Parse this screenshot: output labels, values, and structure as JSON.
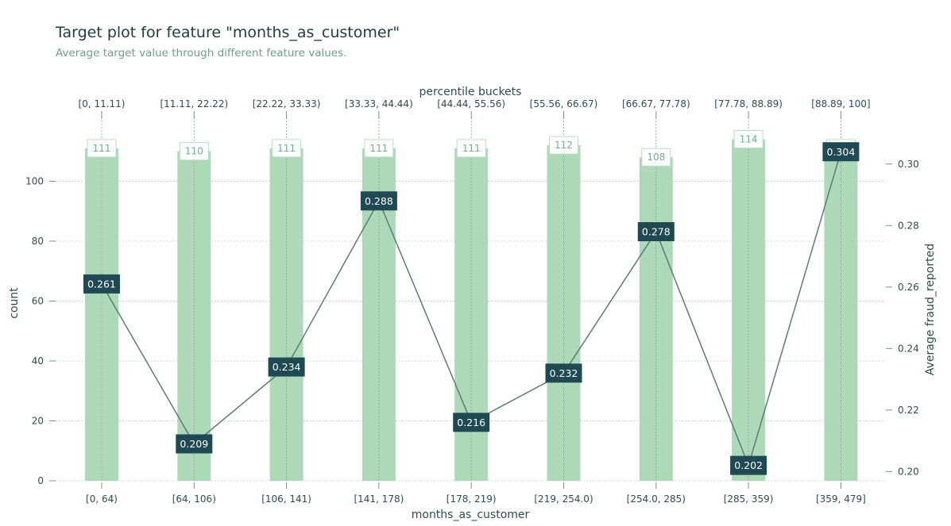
{
  "chart_data": {
    "type": "bar",
    "title": "Target plot for feature \"months_as_customer\"",
    "subtitle": "Average target value through different feature values.",
    "xlabel": "months_as_customer",
    "ylabel": "count",
    "y2label": "Average fraud_reported",
    "top_axis_label": "percentile buckets",
    "categories": [
      "[0, 64)",
      "[64, 106)",
      "[106, 141)",
      "[141, 178)",
      "[178, 219)",
      "[219, 254.0)",
      "[254.0, 285)",
      "[285, 359)",
      "[359, 479]"
    ],
    "percentile_buckets": [
      "[0, 11.11)",
      "[11.11, 22.22)",
      "[22.22, 33.33)",
      "[33.33, 44.44)",
      "[44.44, 55.56)",
      "[55.56, 66.67)",
      "[66.67, 77.78)",
      "[77.78, 88.89)",
      "[88.89, 100]"
    ],
    "series": [
      {
        "values": [
          111,
          110,
          111,
          111,
          111,
          112,
          108,
          114,
          111
        ],
        "axis": "left",
        "kind": "bar",
        "labels": [
          "111",
          "110",
          "111",
          "111",
          "111",
          "112",
          "108",
          "114",
          "111"
        ]
      },
      {
        "values": [
          0.261,
          0.209,
          0.234,
          0.288,
          0.216,
          0.232,
          0.278,
          0.202,
          0.304
        ],
        "axis": "right",
        "kind": "line",
        "labels": [
          "0.261",
          "0.209",
          "0.234",
          "0.288",
          "0.216",
          "0.232",
          "0.278",
          "0.202",
          "0.304"
        ]
      }
    ],
    "ylim": [
      0,
      116
    ],
    "yticks": [
      0,
      20,
      40,
      60,
      80,
      100
    ],
    "y2lim": [
      0.197,
      0.31
    ],
    "y2ticks": [
      "0.20",
      "0.22",
      "0.24",
      "0.26",
      "0.28",
      "0.30"
    ],
    "grid": true,
    "colors": {
      "bar": "#aed9b9",
      "line": "#5d7b72",
      "label_box": "#1f4a53",
      "count_text": "#6fb08e",
      "grid": "#cccccc",
      "text": "#2f4b4d"
    }
  }
}
